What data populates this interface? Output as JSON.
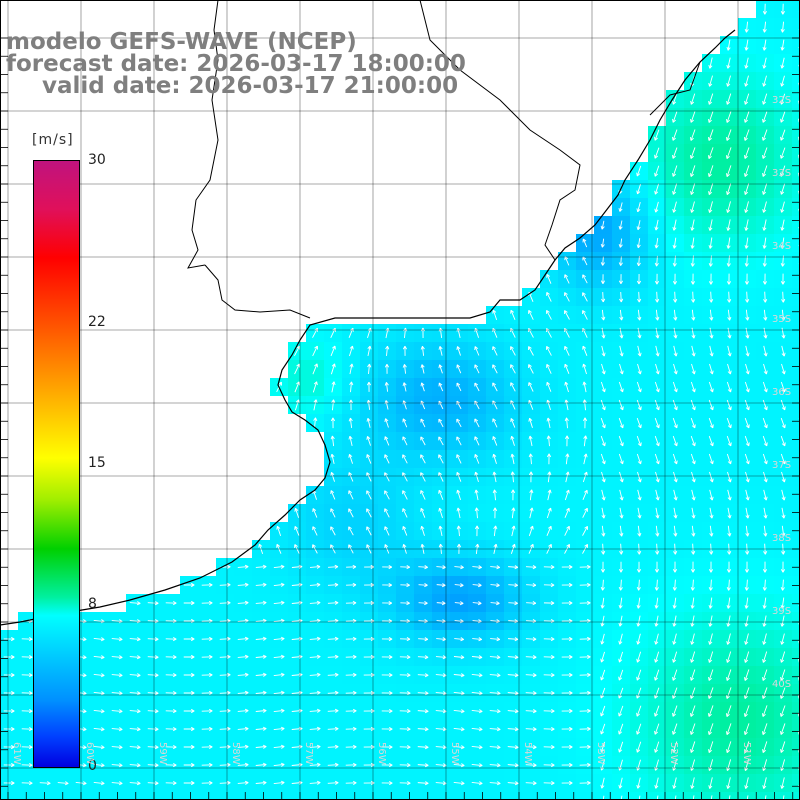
{
  "title": {
    "line1": "modelo GEFS-WAVE (NCEP)",
    "line2": "forecast date: 2026-03-17 18:00:00",
    "line3": "valid date: 2026-03-17 21:00:00"
  },
  "colorbar": {
    "unit": "[m/s]",
    "ticks": [
      {
        "label": "30",
        "value": 30
      },
      {
        "label": "22",
        "value": 22
      },
      {
        "label": "15",
        "value": 15
      },
      {
        "label": "8",
        "value": 8
      },
      {
        "label": "0",
        "value": 0
      }
    ]
  },
  "lat_labels": [
    "32S",
    "33S",
    "34S",
    "35S",
    "36S",
    "37S",
    "38S",
    "39S",
    "40S"
  ],
  "lon_labels": [
    "61W",
    "60W",
    "59W",
    "58W",
    "57W",
    "56W",
    "55W",
    "54W",
    "53W",
    "52W",
    "51W"
  ],
  "colors": {
    "land": "#ffffff",
    "coast": "#000000",
    "grid": "#000000",
    "title": "#7f7f7f",
    "arrows": "#ffffff"
  }
}
